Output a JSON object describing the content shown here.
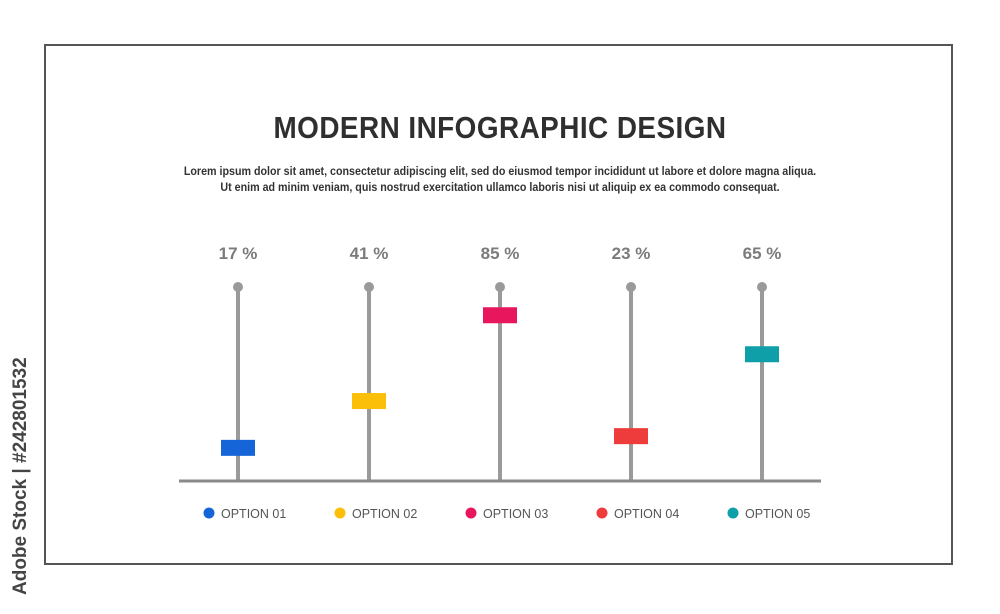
{
  "title": "MODERN INFOGRAPHIC DESIGN",
  "subtitle_line1": "Lorem ipsum dolor sit amet, consectetur adipiscing elit, sed do eiusmod tempor incididunt ut labore et dolore magna aliqua.",
  "subtitle_line2": "Ut enim ad minim veniam, quis nostrud exercitation ullamco laboris nisi ut aliquip ex ea commodo consequat.",
  "watermark": "Adobe Stock | #242801532",
  "chart_data": {
    "type": "scatter",
    "categories": [
      "OPTION 01",
      "OPTION 02",
      "OPTION 03",
      "OPTION 04",
      "OPTION 05"
    ],
    "values": [
      17,
      41,
      85,
      23,
      65
    ],
    "value_labels": [
      "17 %",
      "41 %",
      "85 %",
      "23 %",
      "65 %"
    ],
    "colors": [
      "#1565d8",
      "#fbbf0a",
      "#e8175d",
      "#ee3b3b",
      "#0e9fa8"
    ],
    "stem_color": "#9a9a9a",
    "baseline_color": "#8a8a8a",
    "ylim": [
      0,
      100
    ],
    "grid": false,
    "legend_placement": "bottom"
  }
}
